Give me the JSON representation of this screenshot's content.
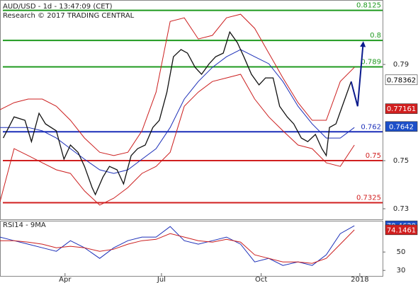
{
  "chart_data": [
    {
      "type": "line",
      "title": "AUD/USD - 1d - 13:47:09 (CET)",
      "subtitle": "Research © 2017 TRADING CENTRAL",
      "xlim": [
        0,
        353
      ],
      "ylim": [
        0.7256,
        0.8168
      ],
      "yticks": [
        0.73,
        0.75,
        0.79
      ],
      "series": [
        {
          "color": "#cc1f1f",
          "width": 1,
          "x": [
            0,
            13,
            26,
            39,
            52,
            65,
            78,
            92,
            105,
            118,
            131,
            144,
            157,
            170,
            183,
            196,
            209,
            222,
            235,
            248,
            261,
            275,
            288,
            301,
            314,
            327
          ],
          "values": [
            0.7712,
            0.7741,
            0.7756,
            0.7756,
            0.7726,
            0.7668,
            0.7594,
            0.7535,
            0.7521,
            0.7535,
            0.7624,
            0.7785,
            0.8079,
            0.8094,
            0.8006,
            0.8021,
            0.8094,
            0.8109,
            0.805,
            0.7947,
            0.7844,
            0.7741,
            0.7668,
            0.7668,
            0.7829,
            0.7888
          ]
        },
        {
          "color": "#cc1f1f",
          "width": 1,
          "x": [
            0,
            13,
            26,
            39,
            52,
            65,
            78,
            92,
            105,
            118,
            131,
            144,
            157,
            170,
            183,
            196,
            209,
            222,
            235,
            248,
            261,
            275,
            288,
            301,
            314,
            327
          ],
          "values": [
            0.7329,
            0.755,
            0.7521,
            0.7491,
            0.7462,
            0.7447,
            0.7374,
            0.7315,
            0.7344,
            0.7388,
            0.7447,
            0.7476,
            0.7535,
            0.7726,
            0.7785,
            0.7829,
            0.7844,
            0.7859,
            0.7756,
            0.7682,
            0.7624,
            0.7565,
            0.755,
            0.7491,
            0.7476,
            0.7565
          ]
        },
        {
          "color": "#1c2fb8",
          "width": 1,
          "x": [
            0,
            13,
            26,
            39,
            52,
            65,
            78,
            92,
            105,
            118,
            131,
            144,
            157,
            170,
            183,
            196,
            209,
            222,
            235,
            248,
            261,
            275,
            288,
            301,
            314,
            327
          ],
          "values": [
            0.7638,
            0.7638,
            0.7638,
            0.7624,
            0.7594,
            0.755,
            0.7506,
            0.7462,
            0.7447,
            0.7462,
            0.7506,
            0.755,
            0.7638,
            0.7756,
            0.7829,
            0.7888,
            0.7932,
            0.7962,
            0.7932,
            0.7903,
            0.7829,
            0.7726,
            0.7653,
            0.7594,
            0.7594,
            0.7638
          ]
        },
        {
          "color": "#111111",
          "width": 1.3,
          "x": [
            3,
            13,
            23,
            29,
            36,
            42,
            52,
            59,
            65,
            72,
            78,
            85,
            88,
            95,
            101,
            108,
            114,
            121,
            127,
            134,
            141,
            147,
            154,
            160,
            167,
            173,
            180,
            186,
            193,
            199,
            206,
            212,
            219,
            225,
            232,
            239,
            245,
            252,
            258,
            265,
            271,
            278,
            284,
            291,
            297,
            301,
            304,
            310,
            317,
            324
          ],
          "values": [
            0.7594,
            0.7682,
            0.7668,
            0.7579,
            0.7697,
            0.7653,
            0.7624,
            0.7506,
            0.7565,
            0.7535,
            0.7476,
            0.7388,
            0.7359,
            0.7432,
            0.7476,
            0.7462,
            0.7403,
            0.7521,
            0.755,
            0.7565,
            0.7638,
            0.7668,
            0.7785,
            0.7932,
            0.7962,
            0.7947,
            0.7888,
            0.7859,
            0.7903,
            0.7932,
            0.7947,
            0.8035,
            0.7991,
            0.7932,
            0.7859,
            0.7815,
            0.7844,
            0.7844,
            0.7726,
            0.7682,
            0.7653,
            0.7594,
            0.7579,
            0.7609,
            0.755,
            0.7521,
            0.7638,
            0.7653,
            0.7741,
            0.7829
          ]
        }
      ],
      "forecast": {
        "color": "#0a1a8c",
        "x": [
          324,
          330,
          335
        ],
        "values": [
          0.7829,
          0.7726,
          0.7985
        ]
      },
      "levels": [
        {
          "value": 0.8125,
          "color": "#1f9a1f"
        },
        {
          "value": 0.8,
          "color": "#1f9a1f"
        },
        {
          "value": 0.789,
          "color": "#1f9a1f"
        },
        {
          "value": 0.762,
          "color": "#1c2fb8"
        },
        {
          "value": 0.75,
          "color": "#d11f1f"
        },
        {
          "value": 0.7325,
          "color": "#d11f1f"
        }
      ],
      "price_labels": [
        {
          "value": 0.78362,
          "background": "#ffffff",
          "text_color": "#000000"
        },
        {
          "value": 0.77161,
          "background": "#d11f1f",
          "text_color": "#ffffff"
        },
        {
          "value": 0.7642,
          "background": "#1c4fc8",
          "text_color": "#ffffff"
        }
      ]
    },
    {
      "type": "line",
      "title": "RSI14 - 9MA",
      "xlim": [
        0,
        353
      ],
      "ylim": [
        24,
        84
      ],
      "yticks": [
        30,
        50
      ],
      "xticks": [
        {
          "value": 60,
          "label": "Apr"
        },
        {
          "value": 149,
          "label": "Jul"
        },
        {
          "value": 241,
          "label": "Oct"
        },
        {
          "value": 332,
          "label": "2018"
        }
      ],
      "series": [
        {
          "color": "#1c2fb8",
          "width": 1,
          "x": [
            0,
            13,
            26,
            39,
            52,
            65,
            78,
            92,
            105,
            118,
            131,
            144,
            157,
            170,
            183,
            196,
            209,
            222,
            235,
            248,
            261,
            275,
            288,
            301,
            314,
            327
          ],
          "values": [
            66.2,
            62.3,
            58.5,
            54.6,
            50.8,
            62.3,
            54.6,
            43.1,
            54.6,
            62.3,
            66.2,
            66.2,
            77.7,
            62.3,
            58.5,
            62.3,
            66.2,
            58.5,
            39.2,
            43.1,
            35.4,
            39.2,
            35.4,
            46.9,
            70,
            78.5
          ]
        },
        {
          "color": "#cc1f1f",
          "width": 1,
          "x": [
            0,
            13,
            26,
            39,
            52,
            65,
            78,
            92,
            105,
            118,
            131,
            144,
            157,
            170,
            183,
            196,
            209,
            222,
            235,
            248,
            261,
            275,
            288,
            301,
            314,
            327
          ],
          "values": [
            62.3,
            62.3,
            60.8,
            58.5,
            54.6,
            56.2,
            54.6,
            50.8,
            53.1,
            58.5,
            62.3,
            63.8,
            70,
            66.2,
            62.3,
            60.8,
            63.8,
            60.8,
            46.9,
            43.1,
            39.2,
            39.2,
            37.7,
            43.1,
            58.5,
            74.1
          ]
        }
      ],
      "price_labels": [
        {
          "value": 78.4629,
          "background": "#1c4fc8",
          "text_color": "#ffffff"
        },
        {
          "value": 74.1461,
          "background": "#d11f1f",
          "text_color": "#ffffff"
        }
      ]
    }
  ]
}
